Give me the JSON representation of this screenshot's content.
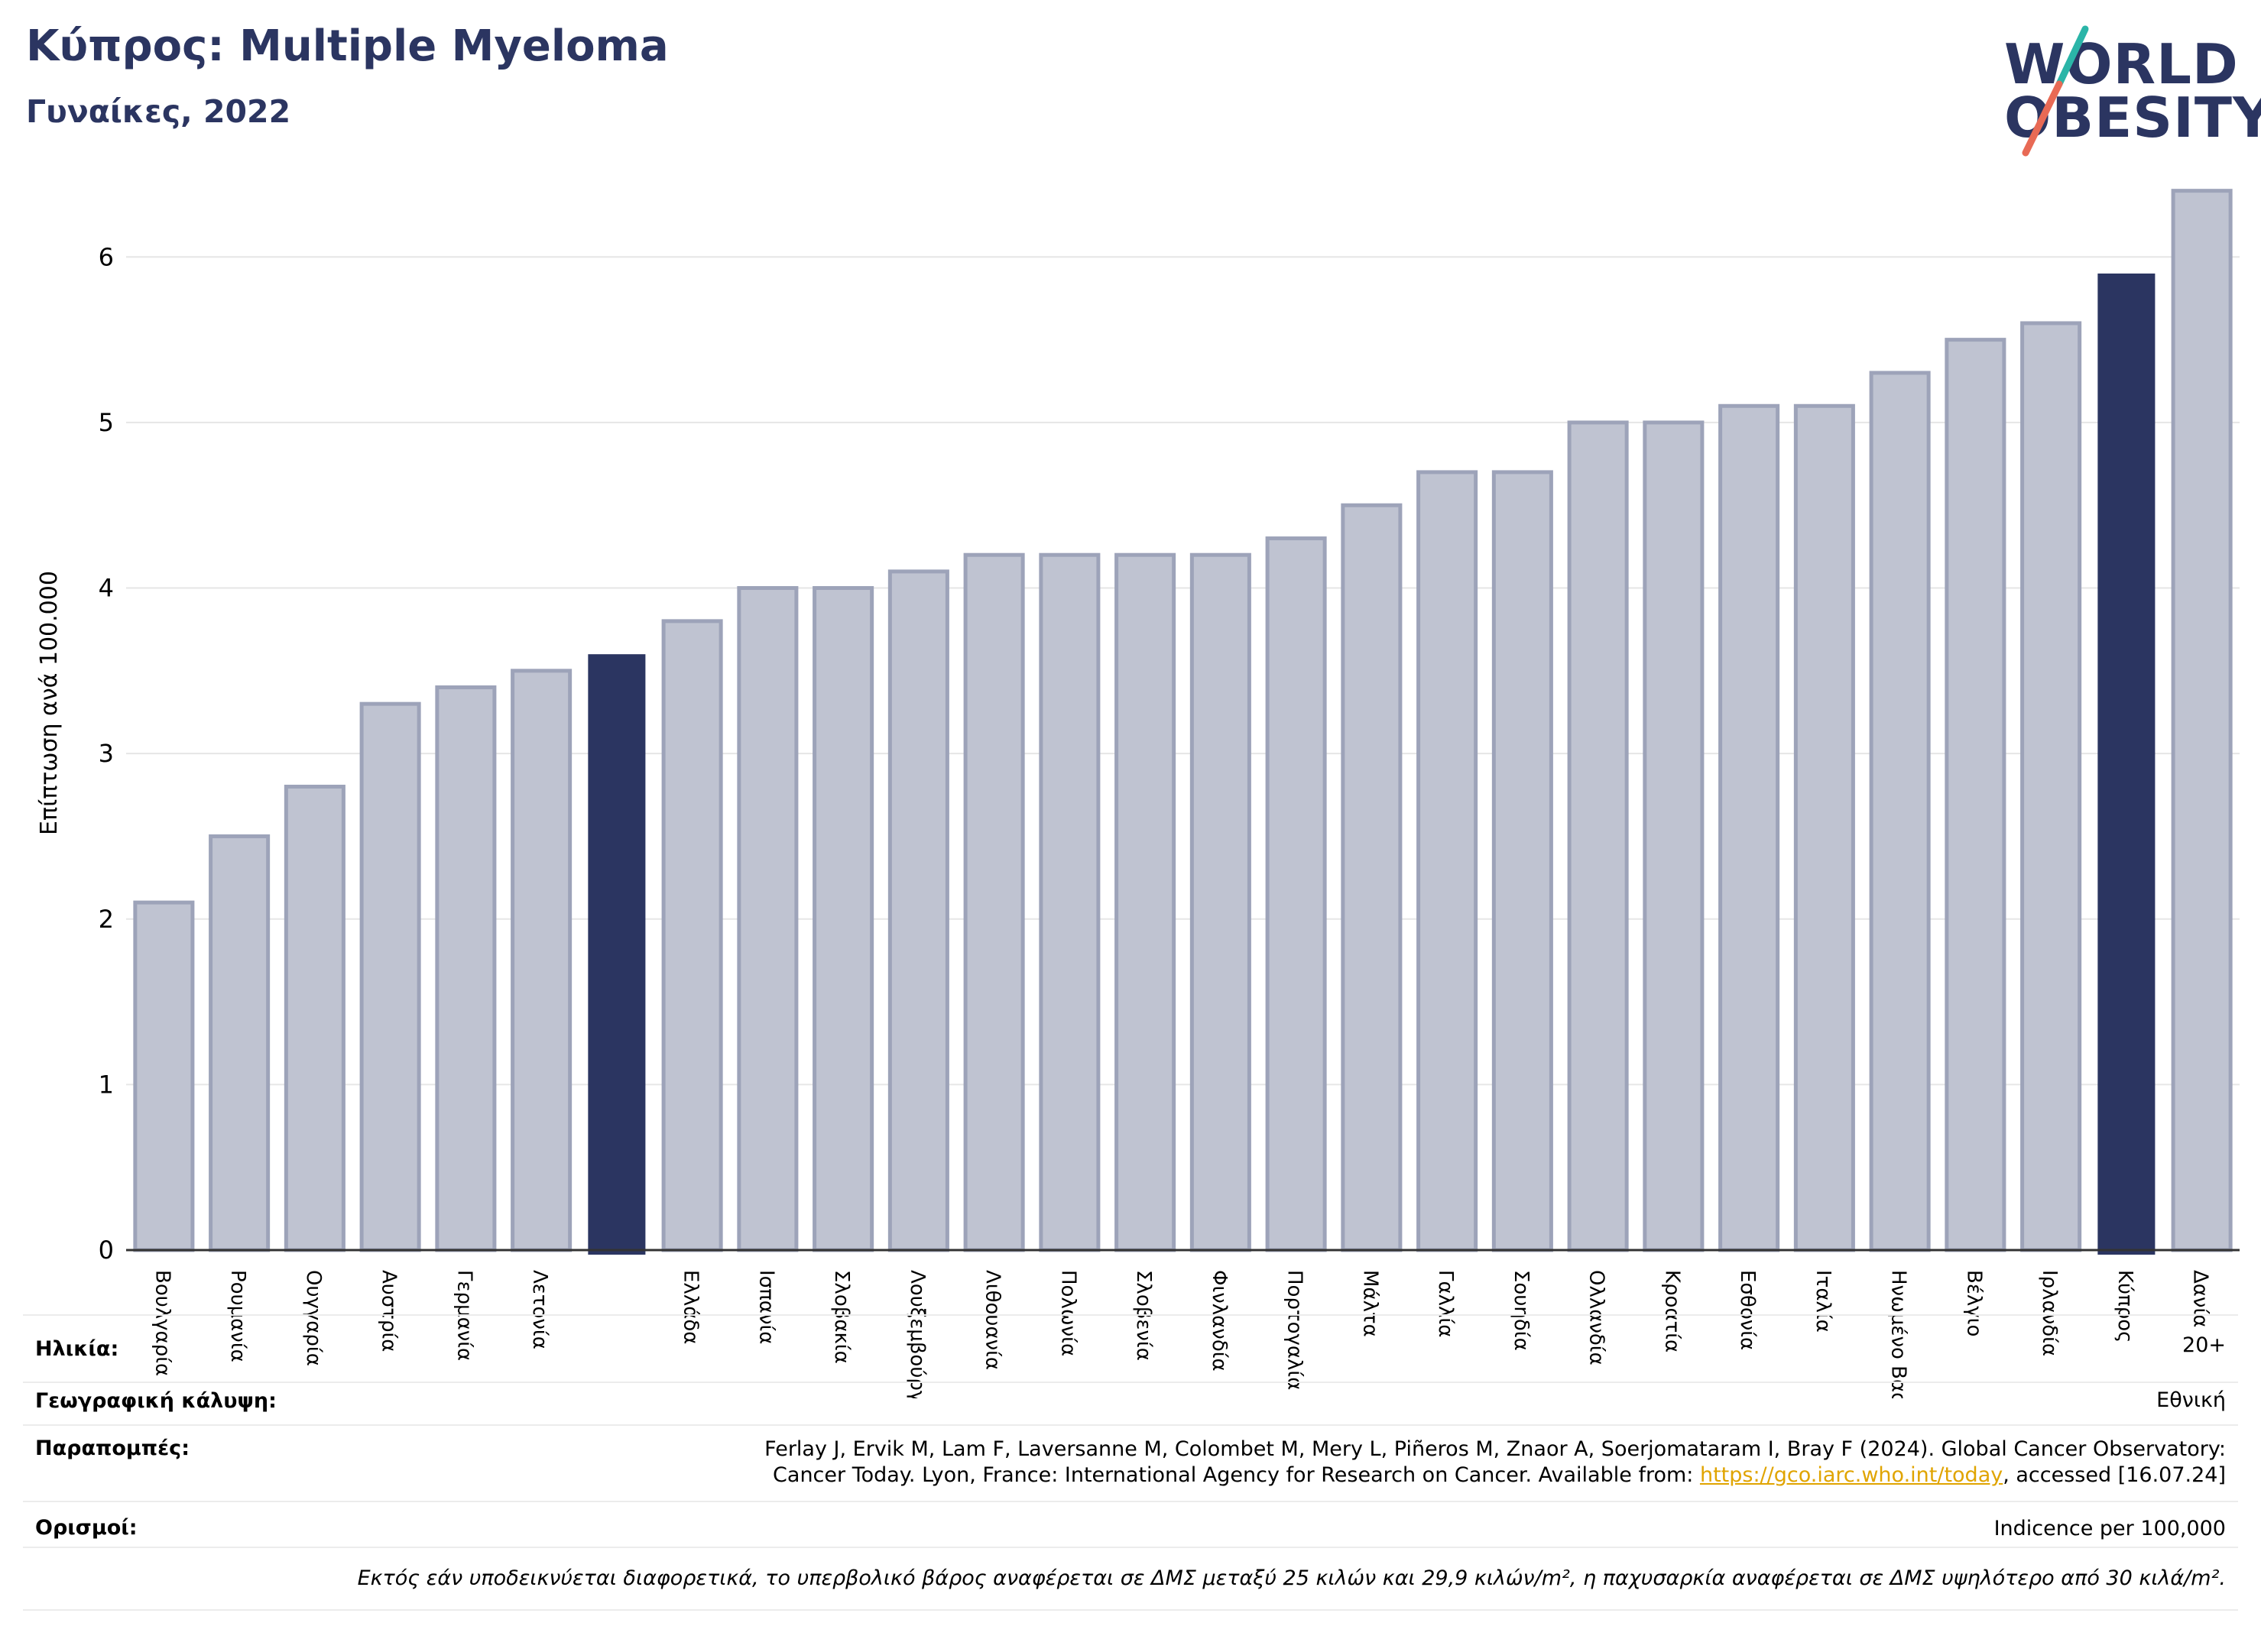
{
  "header": {
    "title": "Κύπρος: Multiple Myeloma",
    "subtitle": "Γυναίκες, 2022"
  },
  "logo": {
    "line1": "WORLD",
    "line2": "OBESITY",
    "colors": {
      "text": "#2b3561",
      "slash_top": "#2bb5a8",
      "slash_bottom": "#e86a55"
    }
  },
  "chart_data": {
    "type": "bar",
    "ylabel": "Επίπτωση ανά 100.000",
    "ylim": [
      0,
      6.5
    ],
    "yticks": [
      0,
      1,
      2,
      3,
      4,
      5,
      6
    ],
    "grid": true,
    "colors": {
      "default": "#bfc3d1",
      "default_edge": "#9da3b9",
      "highlight": "#2b3561"
    },
    "categories": [
      "Βουλγαρία",
      "Ρουμανία",
      "Ουγγαρία",
      "Αυστρία",
      "Γερμανία",
      "Λετονία",
      "",
      "Ελλάδα",
      "Ισπανία",
      "Σλοβακία",
      "Λουξεμβούργο",
      "Λιθουανία",
      "Πολωνία",
      "Σλοβενία",
      "Φινλανδία",
      "Πορτογαλία",
      "Μάλτα",
      "Γαλλία",
      "Σουηδία",
      "Ολλανδία",
      "Κροατία",
      "Εσθονία",
      "Ιταλία",
      "Ηνωμένο Βασίλειο",
      "Βέλγιο",
      "Ιρλανδία",
      "Κύπρος",
      "Δανία"
    ],
    "values": [
      2.1,
      2.5,
      2.8,
      3.3,
      3.4,
      3.5,
      3.6,
      3.8,
      4.0,
      4.0,
      4.1,
      4.2,
      4.2,
      4.2,
      4.2,
      4.3,
      4.5,
      4.7,
      4.7,
      5.0,
      5.0,
      5.1,
      5.1,
      5.3,
      5.5,
      5.6,
      5.9,
      6.4
    ],
    "highlighted": [
      6,
      26
    ]
  },
  "info": {
    "age_label": "Ηλικία:",
    "age_value": "20+",
    "coverage_label": "Γεωγραφική κάλυψη:",
    "coverage_value": "Εθνική",
    "refs_label": "Παραπομπές:",
    "refs_line1": "Ferlay J, Ervik M, Lam F, Laversanne M, Colombet M, Mery L, Piñeros M, Znaor A, Soerjomataram I, Bray F (2024). Global Cancer Observatory:",
    "refs_line2_pre": "Cancer Today. Lyon, France: International Agency for Research on Cancer. Available from: ",
    "refs_link": "https://gco.iarc.who.int/today",
    "refs_line2_post": ", accessed [16.07.24]",
    "defs_label": "Ορισμοί:",
    "defs_value": "Indicence per 100,000",
    "footnote": "Εκτός εάν υποδεικνύεται διαφορετικά, το υπερβολικό βάρος αναφέρεται σε ΔΜΣ μεταξύ 25 κιλών και 29,9 κιλών/m², η παχυσαρκία αναφέρεται σε ΔΜΣ υψηλότερο από 30 κιλά/m²."
  }
}
